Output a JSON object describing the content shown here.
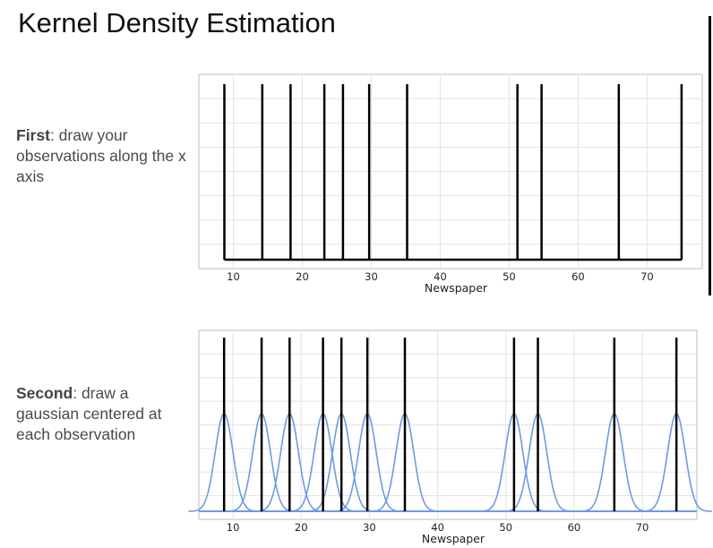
{
  "slide": {
    "title": "Kernel Density Estimation"
  },
  "captions": [
    {
      "bold": "First",
      "rest": ": draw your observations along the x axis"
    },
    {
      "bold": "Second",
      "rest": ": draw a gaussian centered at each observation"
    }
  ],
  "colors": {
    "observation_line": "#000000",
    "gaussian_curve": "#6f9ae0",
    "grid": "#e3e3e3",
    "frame": "#bdbdbd"
  },
  "chart_data": [
    {
      "type": "rug",
      "title": "",
      "xlabel": "Newspaper",
      "ylabel": "",
      "xlim": [
        5,
        78
      ],
      "xticks": [
        10,
        20,
        30,
        40,
        50,
        60,
        70
      ],
      "grid": true,
      "observations": [
        8.7,
        14.2,
        18.3,
        23.2,
        25.9,
        29.7,
        35.2,
        51.2,
        54.7,
        65.9,
        75.0
      ]
    },
    {
      "type": "line",
      "title": "",
      "xlabel": "Newspaper",
      "ylabel": "",
      "xlim": [
        5,
        78
      ],
      "xticks": [
        10,
        20,
        30,
        40,
        50,
        60,
        70
      ],
      "grid": true,
      "observations": [
        8.7,
        14.2,
        18.3,
        23.2,
        25.9,
        29.7,
        35.2,
        51.2,
        54.7,
        65.9,
        75.0
      ],
      "kernel": "gaussian",
      "bandwidth": 1.3
    }
  ]
}
